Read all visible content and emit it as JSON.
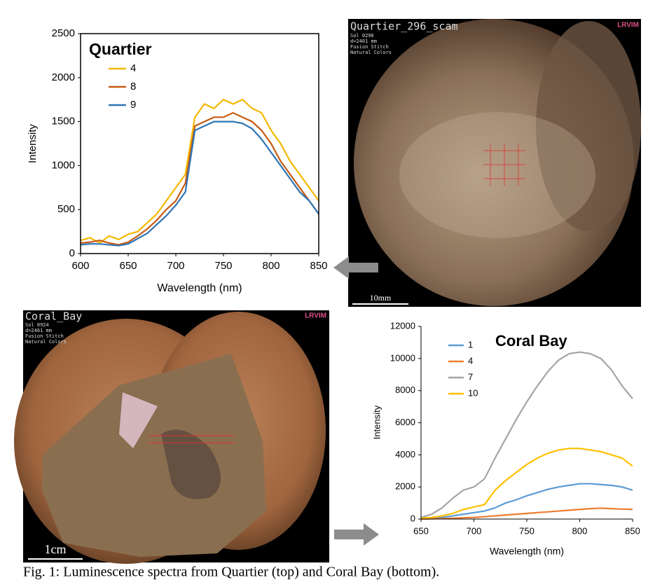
{
  "chart_data": [
    {
      "type": "line",
      "title": "Quartier",
      "x_label": "Wavelength (nm)",
      "y_label": "Intensity",
      "x": [
        600,
        610,
        620,
        630,
        640,
        650,
        660,
        670,
        680,
        690,
        700,
        710,
        720,
        730,
        740,
        750,
        760,
        770,
        780,
        790,
        800,
        810,
        820,
        830,
        840,
        850
      ],
      "series": [
        {
          "name": "4",
          "color": "#f5b800",
          "values": [
            150,
            180,
            120,
            200,
            160,
            220,
            250,
            350,
            450,
            600,
            750,
            900,
            1550,
            1700,
            1650,
            1750,
            1700,
            1750,
            1650,
            1600,
            1400,
            1250,
            1050,
            900,
            750,
            600
          ]
        },
        {
          "name": "8",
          "color": "#c55a11",
          "values": [
            120,
            130,
            150,
            120,
            100,
            130,
            200,
            280,
            380,
            500,
            600,
            800,
            1450,
            1500,
            1550,
            1550,
            1600,
            1550,
            1500,
            1400,
            1250,
            1050,
            900,
            750,
            600,
            450
          ]
        },
        {
          "name": "9",
          "color": "#2e75b6",
          "values": [
            100,
            110,
            110,
            100,
            90,
            110,
            170,
            230,
            330,
            430,
            550,
            700,
            1400,
            1450,
            1500,
            1500,
            1500,
            1480,
            1420,
            1300,
            1150,
            1000,
            850,
            700,
            600,
            450
          ]
        }
      ],
      "xlim": [
        600,
        850
      ],
      "xticks": [
        600,
        650,
        700,
        750,
        800,
        850
      ],
      "ylim": [
        0,
        2500
      ],
      "yticks": [
        0,
        500,
        1000,
        1500,
        2000,
        2500
      ],
      "grid": false
    },
    {
      "type": "line",
      "title": "Coral Bay",
      "x_label": "Wavelength (nm)",
      "y_label": "Intensity",
      "x": [
        650,
        660,
        670,
        680,
        690,
        700,
        710,
        720,
        730,
        740,
        750,
        760,
        770,
        780,
        790,
        800,
        810,
        820,
        830,
        840,
        850
      ],
      "series": [
        {
          "name": "1",
          "color": "#5b9bd5",
          "values": [
            30,
            60,
            100,
            200,
            300,
            400,
            500,
            700,
            1000,
            1200,
            1450,
            1650,
            1850,
            2000,
            2100,
            2200,
            2200,
            2150,
            2100,
            2000,
            1800
          ]
        },
        {
          "name": "4",
          "color": "#ed7d31",
          "values": [
            0,
            20,
            30,
            50,
            80,
            100,
            150,
            200,
            250,
            300,
            350,
            400,
            450,
            500,
            550,
            600,
            650,
            680,
            650,
            620,
            600
          ]
        },
        {
          "name": "7",
          "color": "#a5a5a5",
          "values": [
            100,
            300,
            700,
            1300,
            1800,
            2000,
            2500,
            3800,
            5000,
            6200,
            7300,
            8300,
            9200,
            9900,
            10300,
            10400,
            10300,
            10000,
            9300,
            8300,
            7500
          ]
        },
        {
          "name": "10",
          "color": "#ffc000",
          "values": [
            50,
            100,
            200,
            350,
            600,
            750,
            900,
            1800,
            2400,
            2900,
            3400,
            3800,
            4100,
            4300,
            4400,
            4400,
            4300,
            4200,
            4000,
            3800,
            3300
          ]
        }
      ],
      "xlim": [
        650,
        850
      ],
      "xticks": [
        650,
        700,
        750,
        800,
        850
      ],
      "ylim": [
        0,
        12000
      ],
      "yticks": [
        0,
        2000,
        4000,
        6000,
        8000,
        10000,
        12000
      ],
      "grid": false
    }
  ],
  "images": [
    {
      "title": "Quartier_296_scam",
      "info": [
        "Sol 0296",
        "d=2401 mm",
        "Fusion Stitch",
        "Natural Colors"
      ],
      "logo": "LRVIM",
      "scale": "10mm"
    },
    {
      "title": "Coral_Bay",
      "info": [
        "Sol 0924",
        "d=2461 mm",
        "Fusion Stitch",
        "Natural Colors"
      ],
      "logo": "LRVIM",
      "scale": "1cm"
    }
  ],
  "caption": "Fig. 1: Luminescence spectra from Quartier (top) and Coral Bay (bottom)."
}
